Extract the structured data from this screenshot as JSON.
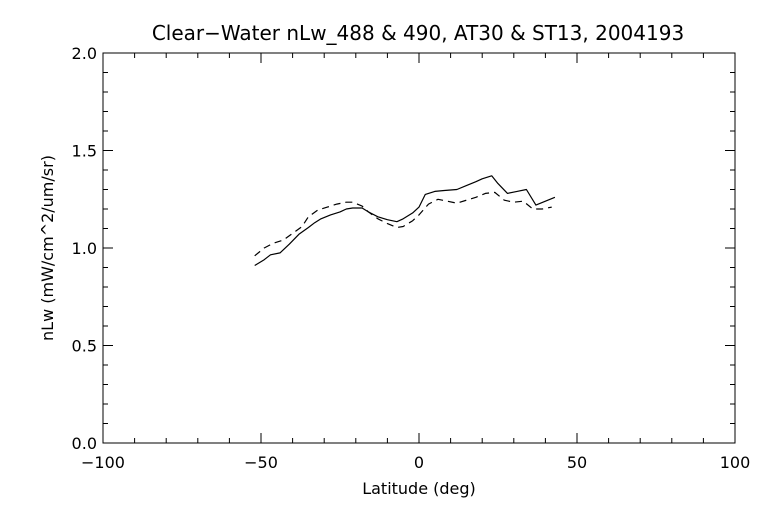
{
  "chart_data": {
    "type": "line",
    "title": "Clear−Water nLw_488 & 490, AT30 & ST13, 2004193",
    "xlabel": "Latitude (deg)",
    "ylabel": "nLw (mW/cm^2/um/sr)",
    "xlim": [
      -100,
      100
    ],
    "ylim": [
      0.0,
      2.0
    ],
    "xticks": [
      -100,
      -50,
      0,
      50,
      100
    ],
    "xtick_labels": [
      "−100",
      "−50",
      "0",
      "50",
      "100"
    ],
    "yticks": [
      0.0,
      0.5,
      1.0,
      1.5,
      2.0
    ],
    "ytick_labels": [
      "0.0",
      "0.5",
      "1.0",
      "1.5",
      "2.0"
    ],
    "x_minor_step": 10,
    "y_minor_step": 0.1,
    "grid": false,
    "legend": "none",
    "line_color": "#000000",
    "series": [
      {
        "style": "solid",
        "x": [
          -52,
          -49,
          -47,
          -44,
          -41,
          -38,
          -35,
          -33,
          -31,
          -28,
          -25,
          -23,
          -21,
          -18,
          -16,
          -13,
          -10,
          -7,
          -5,
          -2,
          0,
          2,
          5,
          8,
          12,
          15,
          18,
          20,
          23,
          25,
          28,
          31,
          34,
          37,
          40,
          43
        ],
        "y": [
          0.91,
          0.94,
          0.965,
          0.975,
          1.02,
          1.07,
          1.105,
          1.13,
          1.15,
          1.17,
          1.185,
          1.2,
          1.205,
          1.205,
          1.185,
          1.16,
          1.145,
          1.135,
          1.15,
          1.18,
          1.21,
          1.275,
          1.29,
          1.295,
          1.3,
          1.32,
          1.34,
          1.355,
          1.37,
          1.33,
          1.28,
          1.29,
          1.3,
          1.22,
          1.24,
          1.26
        ]
      },
      {
        "style": "dashed",
        "x": [
          -52,
          -49,
          -46,
          -43,
          -40,
          -37,
          -35,
          -32,
          -29,
          -26,
          -23,
          -21,
          -18,
          -16,
          -13,
          -10,
          -7,
          -5,
          -2,
          0,
          3,
          6,
          9,
          12,
          15,
          18,
          21,
          24,
          27,
          30,
          33,
          36,
          39,
          42
        ],
        "y": [
          0.96,
          1.0,
          1.025,
          1.04,
          1.075,
          1.11,
          1.16,
          1.195,
          1.21,
          1.225,
          1.235,
          1.235,
          1.215,
          1.185,
          1.15,
          1.125,
          1.105,
          1.11,
          1.14,
          1.17,
          1.225,
          1.25,
          1.24,
          1.23,
          1.245,
          1.26,
          1.28,
          1.285,
          1.245,
          1.235,
          1.24,
          1.2,
          1.2,
          1.21
        ]
      }
    ]
  }
}
